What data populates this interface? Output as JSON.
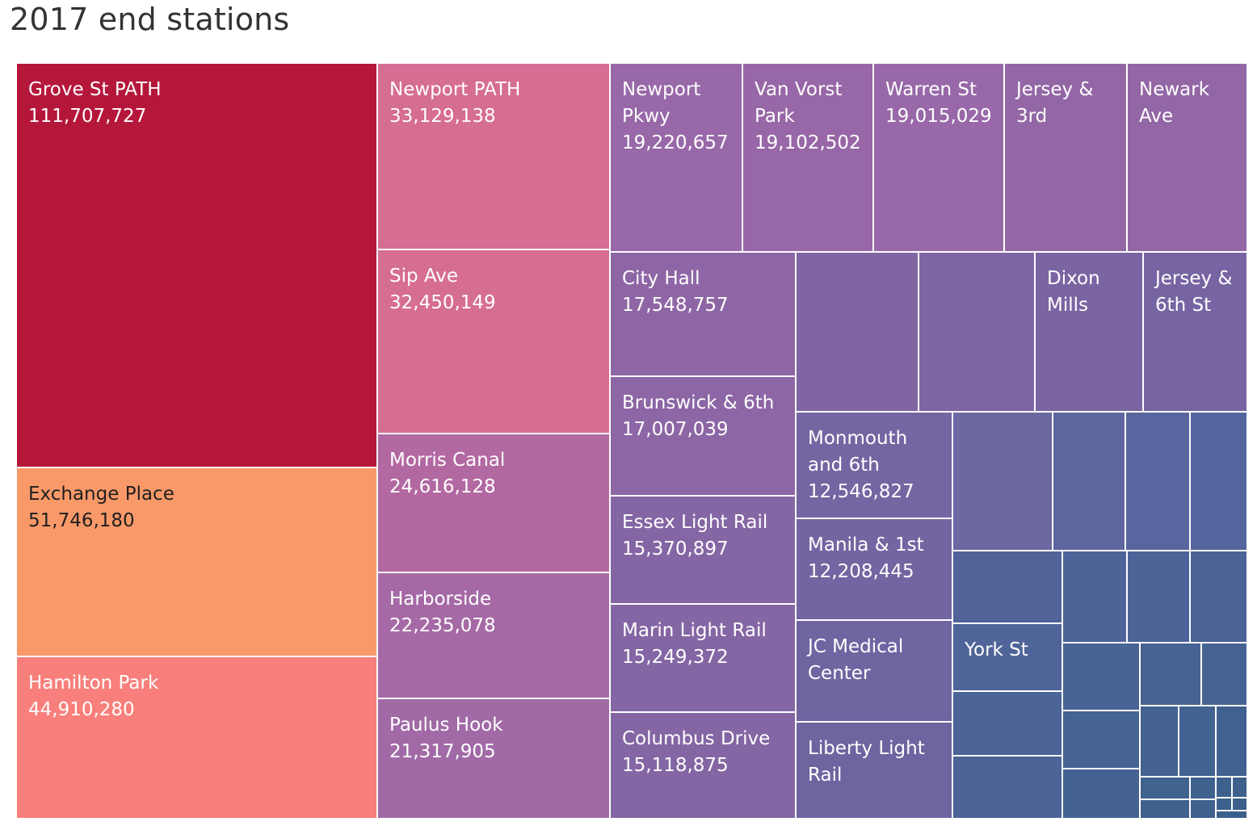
{
  "chart_data": {
    "type": "treemap",
    "title": "2017 end stations",
    "cells": [
      {
        "name": "Grove St PATH",
        "value": "111,707,727",
        "color": "#b5173b"
      },
      {
        "name": "Exchange Place",
        "value": "51,746,180",
        "color": "#f99969"
      },
      {
        "name": "Hamilton Park",
        "value": "44,910,280",
        "color": "#f87f7b"
      },
      {
        "name": "Newport PATH",
        "value": "33,129,138",
        "color": "#d66d93"
      },
      {
        "name": "Sip Ave",
        "value": "32,450,149",
        "color": "#d66d93"
      },
      {
        "name": "Morris Canal",
        "value": "24,616,128",
        "color": "#b268a1"
      },
      {
        "name": "Harborside",
        "value": "22,235,078",
        "color": "#a56aa5"
      },
      {
        "name": "Paulus Hook",
        "value": "21,317,905",
        "color": "#a16aa6"
      },
      {
        "name": "Newport Pkwy",
        "value": "19,220,657",
        "color": "#9868a8"
      },
      {
        "name": "Van Vorst Park",
        "value": "19,102,502",
        "color": "#9867a7"
      },
      {
        "name": "Warren St",
        "value": "19,015,029",
        "color": "#9868a8"
      },
      {
        "name": "Jersey & 3rd",
        "value": "",
        "color": "#9366a5"
      },
      {
        "name": "Newark Ave",
        "value": "",
        "color": "#9366a5"
      },
      {
        "name": "City Hall",
        "value": "17,548,757",
        "color": "#8e66a5"
      },
      {
        "name": "Brunswick & 6th",
        "value": "17,007,039",
        "color": "#8c66a5"
      },
      {
        "name": "Essex Light Rail",
        "value": "15,370,897",
        "color": "#8566a4"
      },
      {
        "name": "Marin Light Rail",
        "value": "15,249,372",
        "color": "#8466a4"
      },
      {
        "name": "Columbus Drive",
        "value": "15,118,875",
        "color": "#8466a4"
      },
      {
        "name": "",
        "value": "",
        "color": "#8065a3"
      },
      {
        "name": "",
        "value": "",
        "color": "#7d65a3"
      },
      {
        "name": "Dixon Mills",
        "value": "",
        "color": "#7a65a2"
      },
      {
        "name": "Jersey & 6th St",
        "value": "",
        "color": "#7764a2"
      },
      {
        "name": "Monmouth and 6th",
        "value": "12,546,827",
        "color": "#7565a2"
      },
      {
        "name": "Manila & 1st",
        "value": "12,208,445",
        "color": "#7365a1"
      },
      {
        "name": "JC Medical Center",
        "value": "",
        "color": "#7064a1"
      },
      {
        "name": "Liberty Light Rail",
        "value": "",
        "color": "#6e64a0"
      },
      {
        "name": "York St",
        "value": "",
        "color": "#4f6498"
      },
      {
        "name": "",
        "value": "",
        "color": "#6c68a2"
      },
      {
        "name": "",
        "value": "",
        "color": "#5e66a0"
      },
      {
        "name": "",
        "value": "",
        "color": "#58659e"
      },
      {
        "name": "",
        "value": "",
        "color": "#53659d"
      },
      {
        "name": "",
        "value": "",
        "color": "#50649a"
      },
      {
        "name": "",
        "value": "",
        "color": "#4e6499"
      },
      {
        "name": "",
        "value": "",
        "color": "#4c6498"
      },
      {
        "name": "",
        "value": "",
        "color": "#4b6397"
      },
      {
        "name": "",
        "value": "",
        "color": "#4d6498"
      },
      {
        "name": "",
        "value": "",
        "color": "#4c6498"
      },
      {
        "name": "",
        "value": "",
        "color": "#496395"
      },
      {
        "name": "",
        "value": "",
        "color": "#476394"
      },
      {
        "name": "",
        "value": "",
        "color": "#466394"
      },
      {
        "name": "",
        "value": "",
        "color": "#456393"
      },
      {
        "name": "",
        "value": "",
        "color": "#446392"
      },
      {
        "name": "",
        "value": "",
        "color": "#436292"
      },
      {
        "name": "",
        "value": "",
        "color": "#426291"
      },
      {
        "name": "",
        "value": "",
        "color": "#416290"
      },
      {
        "name": "",
        "value": "",
        "color": "#40628f"
      },
      {
        "name": "",
        "value": "",
        "color": "#3f618e"
      },
      {
        "name": "",
        "value": "",
        "color": "#3e618e"
      },
      {
        "name": "",
        "value": "",
        "color": "#3e618d"
      },
      {
        "name": "",
        "value": "",
        "color": "#3d618d"
      },
      {
        "name": "",
        "value": "",
        "color": "#3d608c"
      },
      {
        "name": "",
        "value": "",
        "color": "#3c608c"
      },
      {
        "name": "",
        "value": "",
        "color": "#3c608b"
      },
      {
        "name": "",
        "value": "",
        "color": "#3b608b"
      }
    ]
  }
}
